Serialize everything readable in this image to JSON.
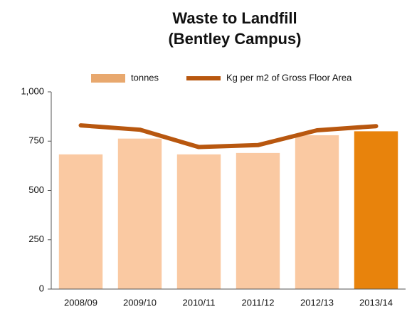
{
  "chart_data": {
    "type": "bar",
    "title": [
      "Waste to Landfill",
      "(Bentley Campus)"
    ],
    "categories": [
      "2008/09",
      "2009/10",
      "2010/11",
      "2011/12",
      "2012/13",
      "2013/14"
    ],
    "series": [
      {
        "name": "tonnes",
        "type": "bar",
        "color": "#e8a86e",
        "colors": [
          "#fac9a2",
          "#fac9a2",
          "#fac9a2",
          "#fac9a2",
          "#fac9a2",
          "#e8830c"
        ],
        "values": [
          683,
          763,
          683,
          690,
          780,
          800
        ]
      },
      {
        "name": "Kg per m2 of Gross Floor Area",
        "type": "line",
        "color": "#b8570f",
        "values": [
          830,
          808,
          720,
          730,
          805,
          826
        ]
      }
    ],
    "ylim": [
      0,
      1000
    ],
    "yticks": [
      0,
      250,
      500,
      750,
      {
        "value": 1000,
        "label": "1,000"
      }
    ],
    "legend": "top"
  }
}
